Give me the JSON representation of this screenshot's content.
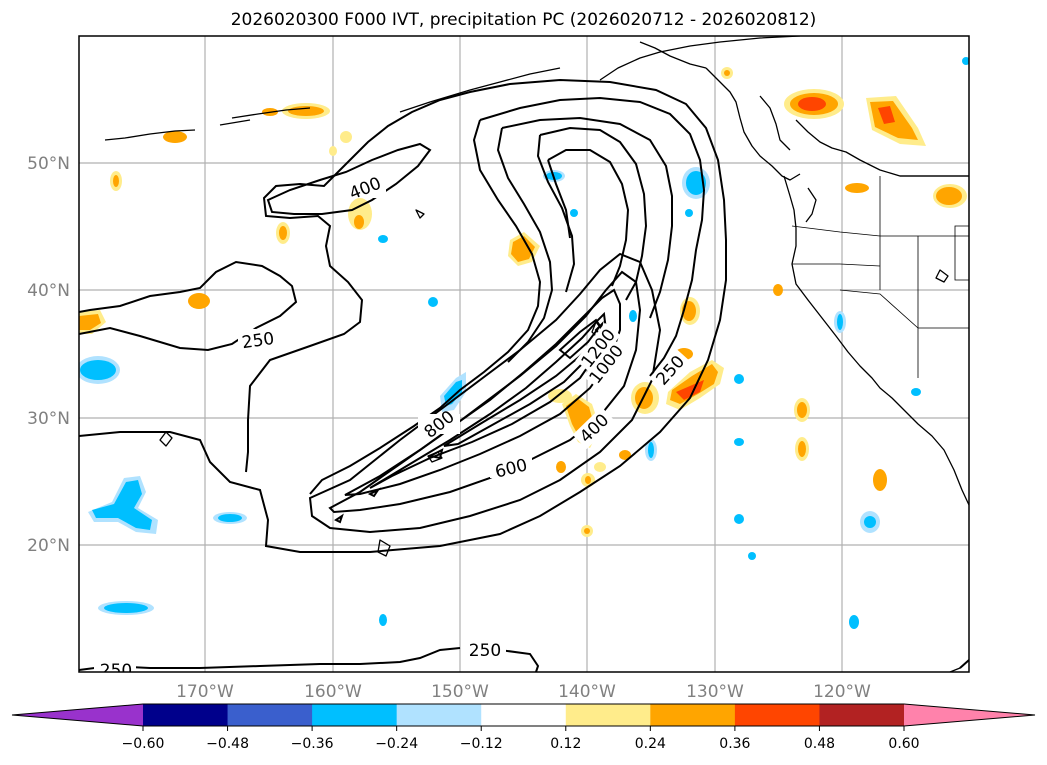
{
  "title": "2026020300 F000 IVT, precipitation PC (2026020712 - 2026020812)",
  "lat_labels": [
    "50°N",
    "40°N",
    "30°N",
    "20°N"
  ],
  "lon_labels": [
    "170°W",
    "160°W",
    "150°W",
    "140°W",
    "130°W",
    "120°W"
  ],
  "contour_labels": [
    "250",
    "400",
    "600",
    "800",
    "1000",
    "1200",
    "250",
    "400",
    "250",
    "250"
  ],
  "colorbar": {
    "labels": [
      "−0.60",
      "−0.48",
      "−0.36",
      "−0.24",
      "−0.12",
      "0.12",
      "0.24",
      "0.36",
      "0.48",
      "0.60"
    ],
    "colors": [
      "#9932cc",
      "#00008b",
      "#3a5fcd",
      "#00bfff",
      "#b0e2ff",
      "#ffffff",
      "#ffec8b",
      "#ffa500",
      "#ff4500",
      "#b22222",
      "#ff82ab"
    ]
  }
}
